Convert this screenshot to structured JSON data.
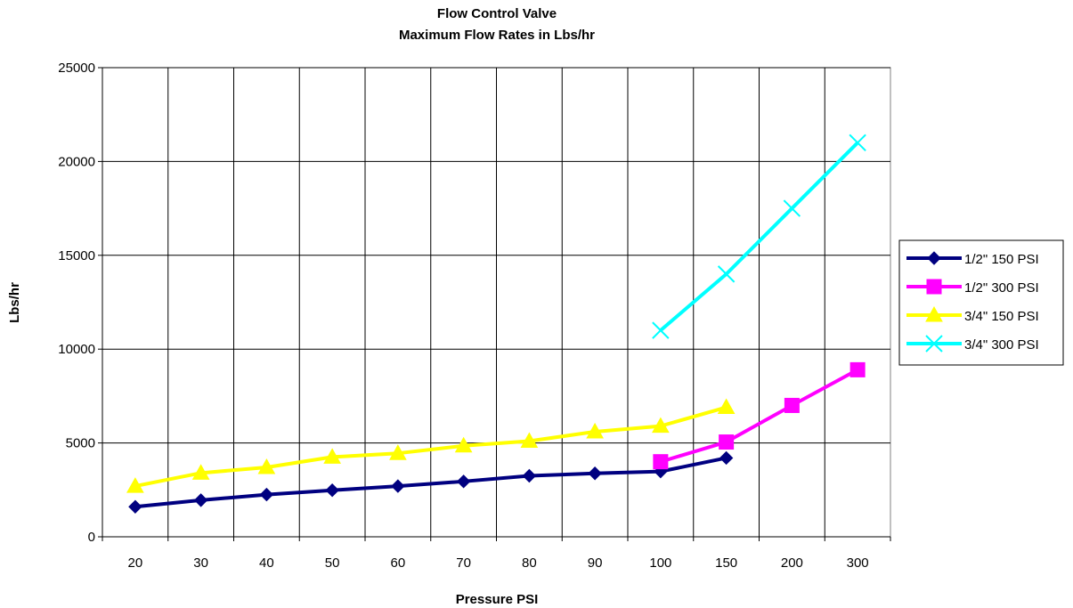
{
  "chart_data": {
    "type": "line",
    "title": "Flow Control Valve",
    "subtitle": "Maximum Flow Rates in Lbs/hr",
    "xlabel": "Pressure PSI",
    "ylabel": "Lbs/hr",
    "categories": [
      "20",
      "30",
      "40",
      "50",
      "60",
      "70",
      "80",
      "90",
      "100",
      "150",
      "200",
      "300"
    ],
    "ylim": [
      0,
      25000
    ],
    "yticks": [
      0,
      5000,
      10000,
      15000,
      20000,
      25000
    ],
    "grid": true,
    "legend_position": "right",
    "series": [
      {
        "name": "1/2\" 150 PSI",
        "color": "#000080",
        "marker": "diamond",
        "values": [
          1600,
          1950,
          2250,
          2480,
          2700,
          2950,
          3250,
          3380,
          3480,
          4200,
          null,
          null
        ]
      },
      {
        "name": "1/2\" 300 PSI",
        "color": "#ff00ff",
        "marker": "square",
        "values": [
          null,
          null,
          null,
          null,
          null,
          null,
          null,
          null,
          4000,
          5050,
          7000,
          8900
        ]
      },
      {
        "name": "3/4\" 150 PSI",
        "color": "#ffff00",
        "marker": "triangle",
        "values": [
          2700,
          3400,
          3700,
          4250,
          4450,
          4850,
          5100,
          5600,
          5900,
          6900,
          null,
          null
        ]
      },
      {
        "name": "3/4\" 300 PSI",
        "color": "#00ffff",
        "marker": "x",
        "values": [
          null,
          null,
          null,
          null,
          null,
          null,
          null,
          null,
          11000,
          14000,
          17500,
          21000
        ]
      }
    ]
  }
}
